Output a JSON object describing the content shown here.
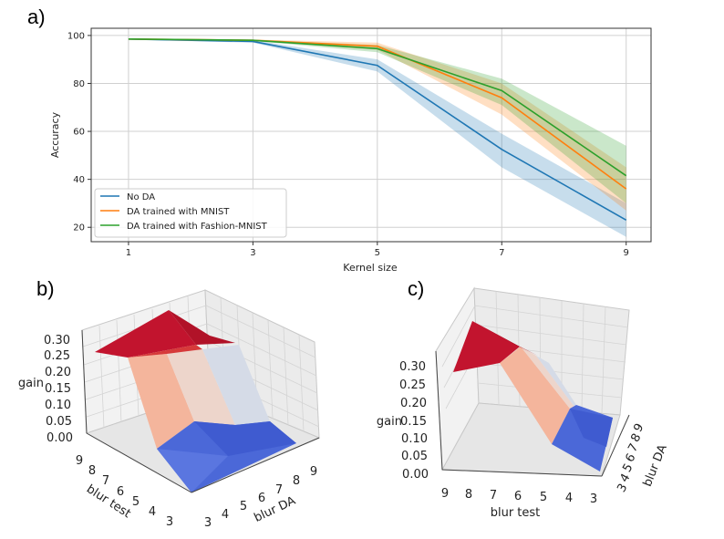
{
  "labels": {
    "a": "a)",
    "b": "b)",
    "c": "c)"
  },
  "chart_data": [
    {
      "type": "line",
      "xlabel": "Kernel size",
      "ylabel": "Accuracy",
      "x": [
        1,
        3,
        5,
        7,
        9
      ],
      "xlim": [
        0.4,
        9.4
      ],
      "ylim": [
        14,
        103
      ],
      "yticks": [
        20,
        40,
        60,
        80,
        100
      ],
      "grid": true,
      "legend_position": "lower-left",
      "series": [
        {
          "name": "No DA",
          "color": "#1f77b4",
          "values": [
            98.5,
            97.5,
            87.5,
            52.5,
            23
          ],
          "lower": [
            98.3,
            97.0,
            85,
            45,
            16
          ],
          "upper": [
            98.7,
            98.0,
            90,
            59,
            30
          ]
        },
        {
          "name": "DA trained with MNIST",
          "color": "#ff7f0e",
          "values": [
            98.5,
            98,
            95.5,
            74,
            36
          ],
          "lower": [
            98.3,
            97.7,
            94,
            67,
            27
          ],
          "upper": [
            98.7,
            98.3,
            97,
            80,
            45
          ]
        },
        {
          "name": "DA trained with Fashion-MNIST",
          "color": "#2ca02c",
          "values": [
            98.5,
            98,
            94.5,
            77,
            41.5
          ],
          "lower": [
            98.3,
            97.7,
            93,
            71,
            30
          ],
          "upper": [
            98.7,
            98.3,
            96,
            82,
            54
          ]
        }
      ]
    },
    {
      "type": "surface",
      "zlabel": "gain",
      "xlabel": "blur DA",
      "ylabel": "blur test",
      "zticks": [
        "0.00",
        "0.05",
        "0.10",
        "0.15",
        "0.20",
        "0.25",
        "0.30"
      ],
      "blur_da_ticks": [
        "3",
        "4",
        "5",
        "6",
        "7",
        "8",
        "9"
      ],
      "blur_test_ticks": [
        "3",
        "4",
        "5",
        "6",
        "7",
        "8",
        "9"
      ],
      "colormap": "coolwarm"
    },
    {
      "type": "surface",
      "zlabel": "gain",
      "xlabel": "blur test",
      "ylabel": "blur DA",
      "zticks": [
        "0.00",
        "0.05",
        "0.10",
        "0.15",
        "0.20",
        "0.25",
        "0.30"
      ],
      "blur_test_ticks": [
        "9",
        "8",
        "7",
        "6",
        "5",
        "4",
        "3"
      ],
      "blur_da_ticks": [
        "3",
        "4",
        "5",
        "6",
        "7",
        "8",
        "9"
      ],
      "colormap": "coolwarm"
    }
  ]
}
